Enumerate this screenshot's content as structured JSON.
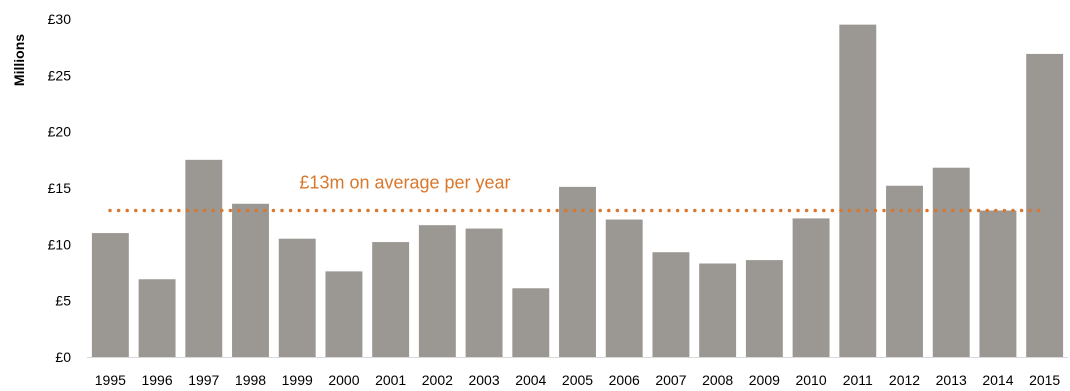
{
  "chart_data": {
    "type": "bar",
    "title": "",
    "xlabel": "",
    "ylabel": "Millions",
    "categories": [
      "1995",
      "1996",
      "1997",
      "1998",
      "1999",
      "2000",
      "2001",
      "2002",
      "2003",
      "2004",
      "2005",
      "2006",
      "2007",
      "2008",
      "2009",
      "2010",
      "2011",
      "2012",
      "2013",
      "2014",
      "2015"
    ],
    "values": [
      11.0,
      6.9,
      17.5,
      13.6,
      10.5,
      7.6,
      10.2,
      11.7,
      11.4,
      6.1,
      15.1,
      12.2,
      9.3,
      8.3,
      8.6,
      12.3,
      29.5,
      15.2,
      16.8,
      13.0,
      26.9
    ],
    "ylim": [
      0,
      30
    ],
    "y_ticks": [
      0,
      5,
      10,
      15,
      20,
      25,
      30
    ],
    "y_tick_labels": [
      "£0",
      "£5",
      "£10",
      "£15",
      "£20",
      "£25",
      "£30"
    ],
    "grid": false,
    "legend": "none",
    "bar_color": "#9b9792",
    "average_line": {
      "value": 13,
      "label": "£13m on average per year",
      "color": "#d9782d",
      "style": "dotted"
    }
  }
}
